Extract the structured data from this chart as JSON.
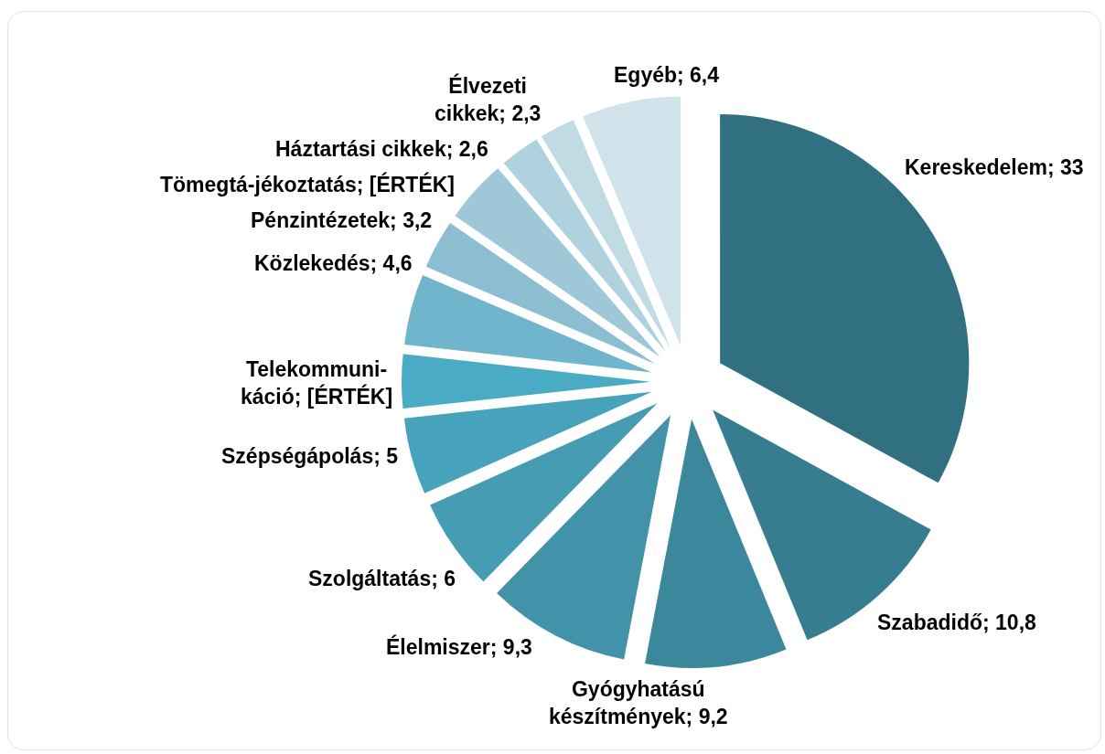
{
  "chart_data": {
    "type": "pie",
    "categories": [
      "Kereskedelem",
      "Szabadidő",
      "Gyógyhatású készítmények",
      "Élelmiszer",
      "Szolgáltatás",
      "Szépségápolás",
      "Telekommuni-káció",
      "Közlekedés",
      "Pénzintézetek",
      "Tömegtá-jékoztatás",
      "Háztartási cikkek",
      "Élvezeti cikkek",
      "Egyéb"
    ],
    "values": [
      33,
      10.8,
      9.2,
      9.3,
      6,
      5,
      3.5,
      4.6,
      3.2,
      4.1,
      2.6,
      2.3,
      6.4
    ],
    "value_labels": [
      "33",
      "10,8",
      "9,2",
      "9,3",
      "6",
      "5",
      "[ÉRTÉK]",
      "4,6",
      "3,2",
      "[ÉRTÉK]",
      "2,6",
      "2,3",
      "6,4"
    ],
    "colors": [
      "#317080",
      "#367d90",
      "#3b889c",
      "#4292aa",
      "#459cb3",
      "#47a2bb",
      "#4aabc4",
      "#6fb5cc",
      "#8bbed0",
      "#9ec8d8",
      "#b0d2de",
      "#c1dbe4",
      "#d0e2ea"
    ]
  }
}
